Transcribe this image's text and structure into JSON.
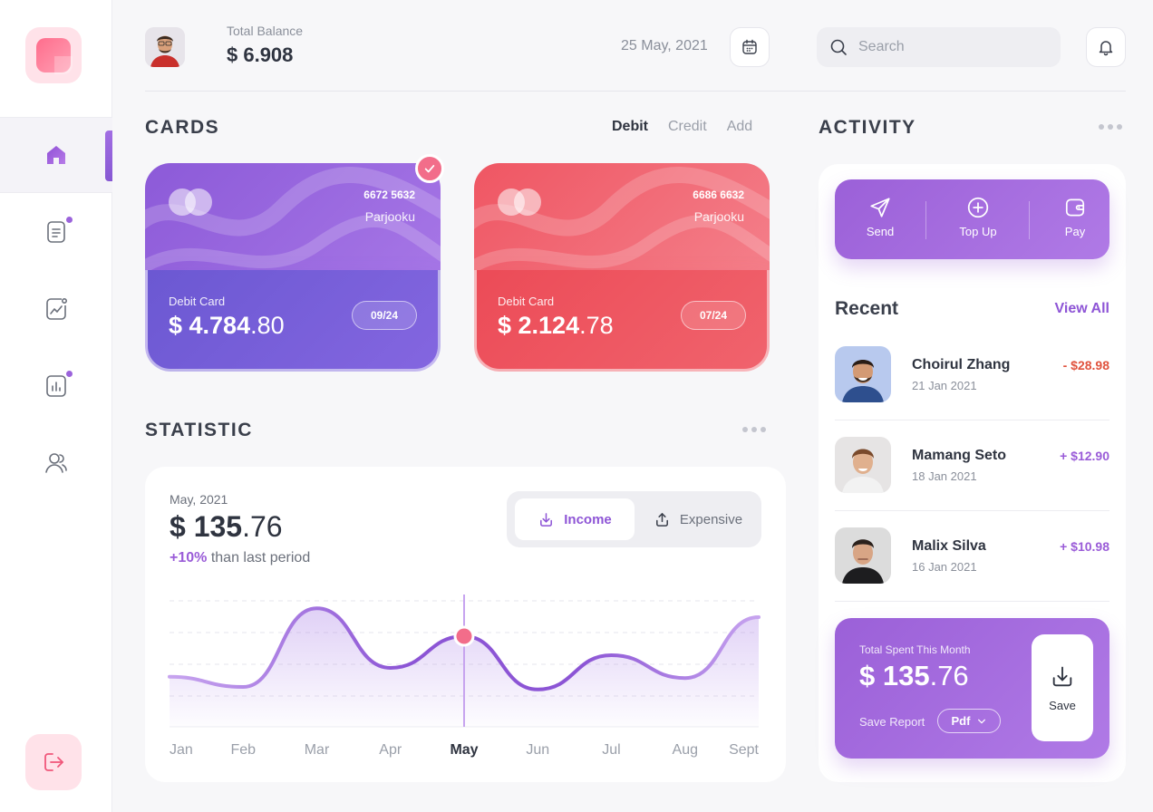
{
  "header": {
    "balance_label": "Total Balance",
    "balance_value": "$ 6.908",
    "date": "25 May, 2021",
    "search_placeholder": "Search"
  },
  "sidebar": {
    "items": [
      {
        "name": "home",
        "icon": "home-icon",
        "active": true
      },
      {
        "name": "documents",
        "icon": "document-icon",
        "notification": true
      },
      {
        "name": "analytics",
        "icon": "trend-icon",
        "notification": false
      },
      {
        "name": "reports",
        "icon": "bar-chart-icon",
        "notification": true
      },
      {
        "name": "users",
        "icon": "users-icon",
        "notification": false
      }
    ],
    "logout_icon": "logout-icon"
  },
  "cards": {
    "title": "CARDS",
    "tabs": [
      "Debit",
      "Credit",
      "Add"
    ],
    "active_tab": "Debit",
    "items": [
      {
        "number": "6672 5632",
        "holder": "Parjooku",
        "type": "Debit Card",
        "amount_main": "$ 4.784",
        "amount_cents": ".80",
        "expiry": "09/24",
        "color": "#8c5ad8",
        "selected": true
      },
      {
        "number": "6686 6632",
        "holder": "Parjooku",
        "type": "Debit Card",
        "amount_main": "$ 2.124",
        "amount_cents": ".78",
        "expiry": "07/24",
        "color": "#ef5663",
        "selected": false
      }
    ]
  },
  "statistic": {
    "title": "STATISTIC",
    "month": "May, 2021",
    "amount_main": "$ 135",
    "amount_cents": ".76",
    "change_value": "+10%",
    "change_text": " than last period",
    "toggle": {
      "income": "Income",
      "expense": "Expensive",
      "active": "Income"
    }
  },
  "chart_data": {
    "type": "area",
    "categories": [
      "Jan",
      "Feb",
      "Mar",
      "Apr",
      "May",
      "Jun",
      "Jul",
      "Aug",
      "Sept"
    ],
    "highlighted": "May",
    "x": [
      0,
      0.5,
      1,
      1.5,
      2,
      2.5,
      3,
      3.5,
      4,
      4.5,
      5,
      5.5,
      6,
      6.5,
      7,
      7.5,
      8
    ],
    "values": [
      0.38,
      0.3,
      0.92,
      0.45,
      0.7,
      0.28,
      0.55,
      0.37,
      0.85
    ],
    "grid": true,
    "color": "#9a5cd8"
  },
  "activity": {
    "title": "ACTIVITY",
    "actions": [
      {
        "label": "Send",
        "icon": "send-icon"
      },
      {
        "label": "Top Up",
        "icon": "plus-circle-icon"
      },
      {
        "label": "Pay",
        "icon": "wallet-icon"
      }
    ],
    "recent_title": "Recent",
    "view_all": "View All",
    "transactions": [
      {
        "name": "Choirul Zhang",
        "date": "21 Jan 2021",
        "amount": "- $28.98",
        "color": "#e0533e"
      },
      {
        "name": "Mamang Seto",
        "date": "18 Jan 2021",
        "amount": "+ $12.90",
        "color": "#9a5cd8"
      },
      {
        "name": "Malix Silva",
        "date": "16 Jan 2021",
        "amount": "+ $10.98",
        "color": "#9a5cd8"
      }
    ],
    "spent": {
      "label": "Total Spent This Month",
      "amount_main": "$ 135",
      "amount_cents": ".76",
      "save_report": "Save Report",
      "format": "Pdf",
      "save_label": "Save"
    }
  },
  "colors": {
    "accent": "#9a5cd8",
    "danger": "#e0533e",
    "pink": "#ff6d8c"
  }
}
